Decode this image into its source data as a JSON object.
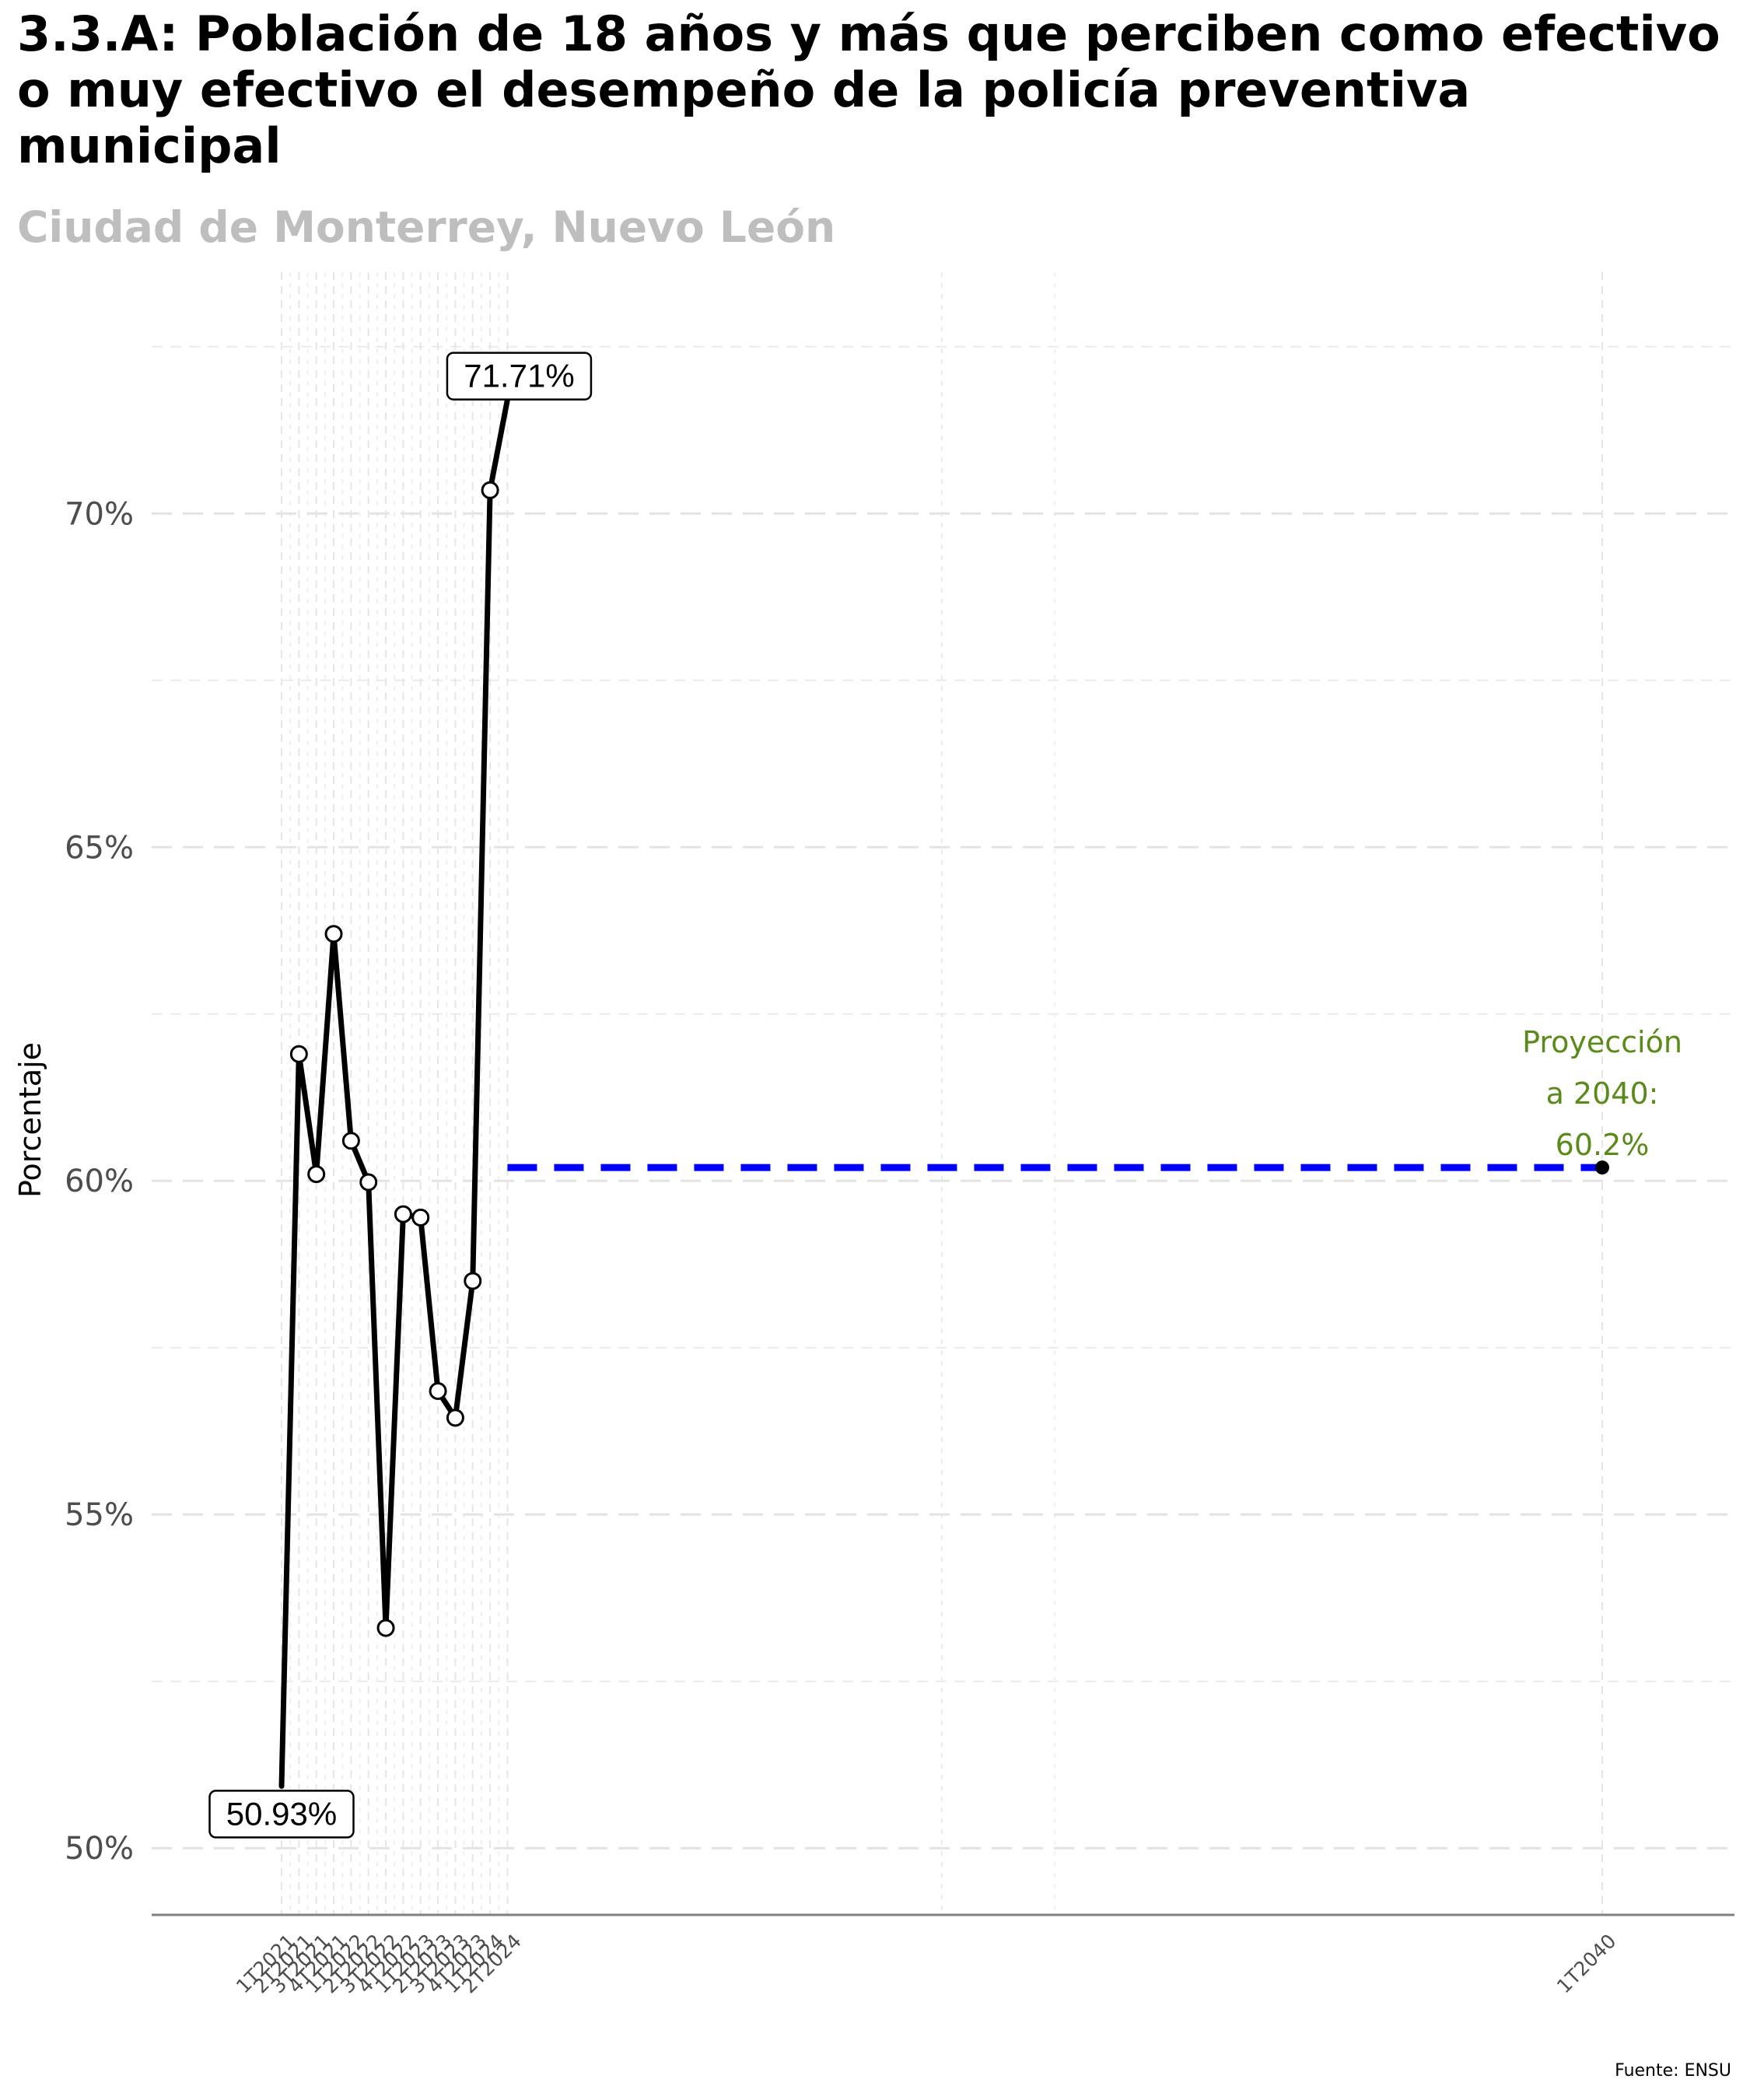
{
  "title": "3.3.A: Población de 18 años y más que perciben como efectivo o muy efectivo el desempeño de la policía preventiva municipal",
  "subtitle": "Ciudad de Monterrey, Nuevo León",
  "caption": "Fuente: ENSU",
  "colors": {
    "line": "#000000",
    "projection_line": "#0000ff",
    "projection_text": "#5a8a1a",
    "subtitle": "#bebebe"
  },
  "chart_data": {
    "type": "line",
    "ylabel": "Porcentaje",
    "xlabel": "",
    "ylim": [
      49.0,
      73.5
    ],
    "y_ticks": [
      50,
      55,
      60,
      65,
      70
    ],
    "y_tick_labels": [
      "50%",
      "55%",
      "60%",
      "65%",
      "70%"
    ],
    "grid": true,
    "categories": [
      "1T2021",
      "2T2021",
      "3T2021",
      "4T2021",
      "1T2022",
      "2T2022",
      "3T2022",
      "4T2022",
      "1T2023",
      "2T2023",
      "3T2023",
      "4T2023",
      "1T2024",
      "2T2024",
      "1T2040"
    ],
    "x_tick_labels": [
      "1T2021",
      "2T2021",
      "3T2021",
      "4T2021",
      "1T2022",
      "2T2022",
      "3T2022",
      "4T2022",
      "1T2023",
      "2T2023",
      "3T2023",
      "4T2023",
      "1T2024",
      "2T2024",
      "1T2040"
    ],
    "series": [
      {
        "x": [
          "1T2021",
          "2T2021",
          "3T2021",
          "4T2021",
          "1T2022",
          "2T2022",
          "3T2022",
          "4T2022",
          "1T2023",
          "2T2023",
          "3T2023",
          "4T2023",
          "1T2024",
          "2T2024"
        ],
        "values": [
          50.93,
          61.9,
          60.1,
          63.7,
          60.6,
          59.98,
          53.3,
          59.5,
          59.45,
          56.85,
          56.45,
          58.5,
          70.35,
          71.71
        ]
      }
    ],
    "labels": [
      {
        "x": "1T2021",
        "value": 50.93,
        "text": "50.93%"
      },
      {
        "x": "2T2024",
        "value": 71.71,
        "text": "71.71%"
      }
    ],
    "projection": {
      "from": "2T2024",
      "to": "1T2040",
      "value": 60.2,
      "text_lines": [
        "Proyección",
        "a 2040:",
        "60.2%"
      ]
    }
  }
}
